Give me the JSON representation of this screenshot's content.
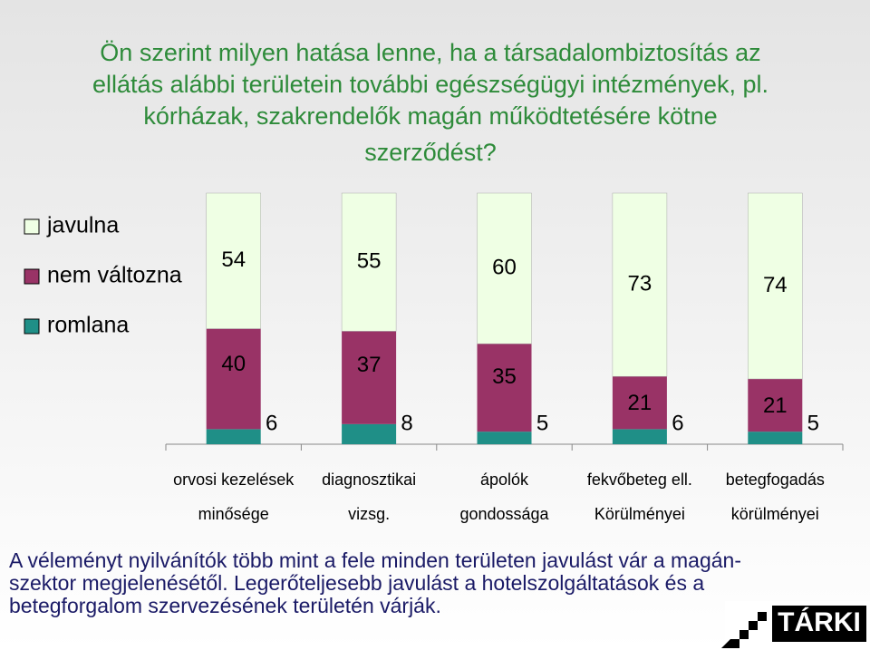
{
  "chart_data": {
    "type": "stacked-bar",
    "title": [
      "Ön szerint milyen hatása lenne, ha a társadalombiztosítás az",
      "ellátás alábbi területein további egészségügyi intézmények, pl.",
      "kórházak, szakrendelők magán működtetésére kötne",
      "szerződést?"
    ],
    "categories": [
      [
        "orvosi kezelések",
        "minősége"
      ],
      [
        "diagnosztikai",
        "vizsg."
      ],
      [
        "ápolók",
        "gondossága"
      ],
      [
        "fekvőbeteg ell.",
        "Körülményei"
      ],
      [
        "betegfogadás",
        "körülményei"
      ]
    ],
    "series": [
      {
        "name": "romlana",
        "color": "#1f8f87",
        "values": [
          6,
          8,
          5,
          6,
          5
        ]
      },
      {
        "name": "nem változna",
        "color": "#993366",
        "values": [
          40,
          37,
          35,
          21,
          21
        ]
      },
      {
        "name": "javulna",
        "color": "#efffe4",
        "values": [
          54,
          55,
          60,
          73,
          74
        ]
      }
    ],
    "ylim": [
      0,
      100
    ],
    "note": [
      "A véleményt nyilvánítók több mint a fele minden területen javulást vár a magán-",
      "szektor megjelenésétől. Legerőteljesebb javulást a hotelszolgáltatások és a",
      "betegforgalom szervezésének területén várják."
    ],
    "logo": "TÁRKI"
  }
}
